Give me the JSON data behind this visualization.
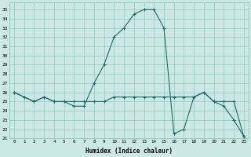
{
  "xlabel": "Humidex (Indice chaleur)",
  "line_color": "#1a6b6b",
  "bg_color": "#cce8e5",
  "grid_color": "#7dbfbb",
  "xlim": [
    -0.5,
    23.5
  ],
  "ylim": [
    21,
    35.8
  ],
  "xticks": [
    0,
    1,
    2,
    3,
    4,
    5,
    6,
    7,
    8,
    9,
    10,
    11,
    12,
    13,
    14,
    15,
    16,
    17,
    18,
    19,
    20,
    21,
    22,
    23
  ],
  "yticks": [
    21,
    22,
    23,
    24,
    25,
    26,
    27,
    28,
    29,
    30,
    31,
    32,
    33,
    34,
    35
  ],
  "line1_x": [
    0,
    1,
    2,
    3,
    4,
    5,
    6,
    7,
    8,
    9,
    10,
    11,
    12,
    13,
    14,
    15,
    16,
    17,
    18,
    19,
    20,
    21,
    22,
    23
  ],
  "line1_y": [
    26.0,
    25.5,
    25.0,
    25.5,
    25.0,
    25.0,
    25.0,
    25.0,
    25.0,
    25.0,
    25.5,
    25.5,
    25.5,
    25.5,
    25.5,
    25.5,
    25.5,
    25.5,
    25.5,
    26.0,
    25.0,
    25.0,
    25.0,
    21.2
  ],
  "line2_x": [
    0,
    1,
    2,
    3,
    4,
    5,
    6,
    7,
    8,
    9,
    10,
    11,
    12,
    13,
    14,
    15,
    16,
    17,
    18,
    19,
    20,
    21,
    22,
    23
  ],
  "line2_y": [
    26.0,
    25.5,
    25.0,
    25.5,
    25.0,
    25.0,
    24.5,
    24.5,
    27.0,
    29.0,
    32.0,
    33.0,
    34.5,
    35.0,
    35.0,
    33.0,
    21.5,
    22.0,
    25.5,
    26.0,
    25.0,
    24.5,
    23.0,
    21.2
  ]
}
